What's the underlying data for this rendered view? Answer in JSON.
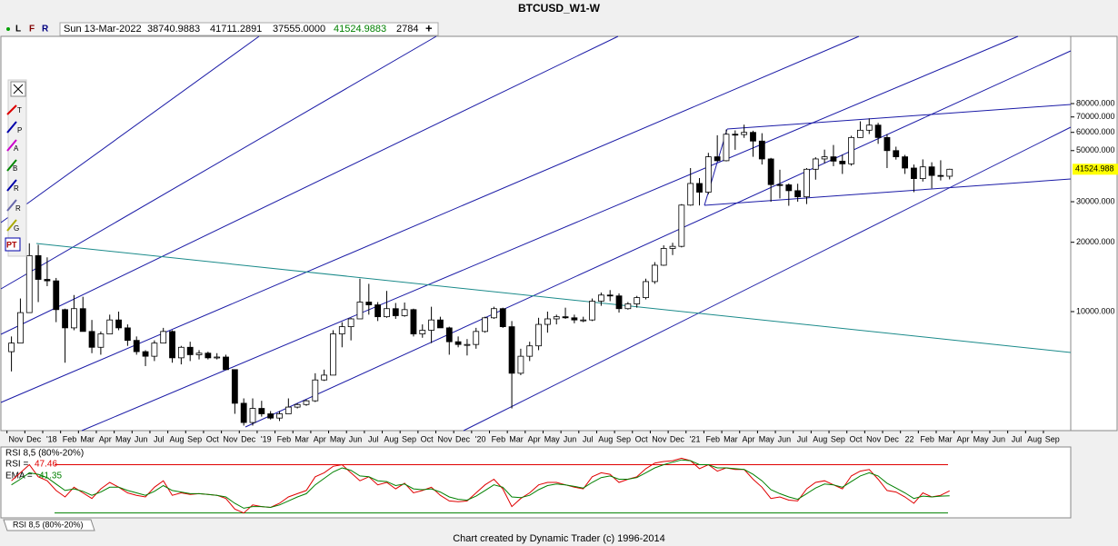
{
  "title": "BTCUSD_W1-W",
  "info_bar": {
    "flags": [
      "L",
      "F",
      "R"
    ],
    "date": "Sun 13-Mar-2022",
    "open": "38740.9883",
    "high": "41711.2891",
    "low": "37555.0000",
    "close": "41524.9883",
    "volume": "2784"
  },
  "toolbar": [
    "T",
    "P",
    "A",
    "B",
    "R",
    "R",
    "G",
    "PT"
  ],
  "chart_data": [
    {
      "type": "candlestick",
      "log_scale": true,
      "up_color": "#ffffff",
      "down_color": "#000000",
      "ylim": [
        3043,
        156700
      ],
      "yticks": [
        {
          "value": 10000,
          "label": "10000.000"
        },
        {
          "value": 20000,
          "label": "20000.000"
        },
        {
          "value": 30000,
          "label": "30000.000"
        },
        {
          "value": 50000,
          "label": "50000.000"
        },
        {
          "value": 60000,
          "label": "60000.000"
        },
        {
          "value": 70000,
          "label": "70000.000"
        },
        {
          "value": 80000,
          "label": "80000.000"
        }
      ],
      "last_price_label": "41524.988",
      "categories": [
        "Nov",
        "Dec",
        "'18",
        "Feb",
        "Mar",
        "Apr",
        "May",
        "Jun",
        "Jul",
        "Aug",
        "Sep",
        "Oct",
        "Nov",
        "Dec",
        "'19",
        "Feb",
        "Mar",
        "Apr",
        "May",
        "Jun",
        "Jul",
        "Aug",
        "Sep",
        "Oct",
        "Nov",
        "Dec",
        "'20",
        "Feb",
        "Mar",
        "Apr",
        "May",
        "Jun",
        "Jul",
        "Aug",
        "Sep",
        "Oct",
        "Nov",
        "Dec",
        "'21",
        "Feb",
        "Mar",
        "Apr",
        "May",
        "Jun",
        "Jul",
        "Aug",
        "Sep",
        "Oct",
        "Nov",
        "Dec",
        "22",
        "Feb",
        "Mar",
        "Apr",
        "May",
        "Jun",
        "Jul",
        "Aug",
        "Sep"
      ],
      "ohlc": [
        [
          6700,
          7800,
          5500,
          7300
        ],
        [
          7300,
          11400,
          7300,
          9900
        ],
        [
          9900,
          19800,
          9900,
          17500
        ],
        [
          17500,
          19500,
          11000,
          13800
        ],
        [
          13800,
          17200,
          12900,
          13600
        ],
        [
          13600,
          14000,
          9000,
          10200
        ],
        [
          10200,
          10300,
          6000,
          8500
        ],
        [
          8500,
          11800,
          8300,
          10300
        ],
        [
          10300,
          11600,
          8300,
          8200
        ],
        [
          8200,
          9200,
          6600,
          7000
        ],
        [
          7000,
          8200,
          6500,
          8000
        ],
        [
          8000,
          9700,
          8000,
          9200
        ],
        [
          9200,
          10000,
          8300,
          8500
        ],
        [
          8500,
          8800,
          7100,
          7500
        ],
        [
          7500,
          7800,
          6500,
          6700
        ],
        [
          6700,
          6800,
          5800,
          6400
        ],
        [
          6400,
          7500,
          6100,
          7300
        ],
        [
          7300,
          8500,
          7300,
          8200
        ],
        [
          8200,
          8300,
          6000,
          6300
        ],
        [
          6300,
          7100,
          5900,
          7000
        ],
        [
          7000,
          7400,
          6100,
          6500
        ],
        [
          6500,
          6800,
          6200,
          6600
        ],
        [
          6600,
          6700,
          6200,
          6300
        ],
        [
          6300,
          6600,
          6200,
          6350
        ],
        [
          6350,
          6500,
          5600,
          5600
        ],
        [
          5600,
          5600,
          3600,
          4000
        ],
        [
          4000,
          4200,
          3200,
          3300
        ],
        [
          3300,
          4200,
          3200,
          3800
        ],
        [
          3800,
          4100,
          3500,
          3600
        ],
        [
          3600,
          3700,
          3400,
          3450
        ],
        [
          3450,
          3700,
          3350,
          3600
        ],
        [
          3600,
          4200,
          3600,
          3850
        ],
        [
          3850,
          4000,
          3800,
          3950
        ],
        [
          3950,
          4150,
          3900,
          4100
        ],
        [
          4100,
          5400,
          4050,
          5050
        ],
        [
          5050,
          5600,
          5000,
          5300
        ],
        [
          5300,
          8300,
          5300,
          8000
        ],
        [
          8000,
          9000,
          7000,
          8600
        ],
        [
          8600,
          9400,
          7500,
          9300
        ],
        [
          9300,
          13900,
          9300,
          11000
        ],
        [
          11000,
          13200,
          9700,
          10700
        ],
        [
          10700,
          11000,
          9100,
          9500
        ],
        [
          9500,
          12300,
          9400,
          10300
        ],
        [
          10300,
          10900,
          9300,
          9600
        ],
        [
          9600,
          10950,
          9500,
          10200
        ],
        [
          10200,
          10300,
          7800,
          8000
        ],
        [
          8000,
          8800,
          7700,
          8300
        ],
        [
          8300,
          10500,
          7300,
          9200
        ],
        [
          9200,
          9500,
          8500,
          8500
        ],
        [
          8500,
          8600,
          6500,
          7400
        ],
        [
          7400,
          7800,
          7000,
          7200
        ],
        [
          7200,
          7600,
          6450,
          7200
        ],
        [
          7200,
          8500,
          6900,
          8200
        ],
        [
          8200,
          9500,
          8100,
          9400
        ],
        [
          9400,
          10500,
          9300,
          10300
        ],
        [
          10300,
          10400,
          8500,
          8600
        ],
        [
          8600,
          9100,
          3800,
          5400
        ],
        [
          5400,
          6900,
          5300,
          6400
        ],
        [
          6400,
          7400,
          6100,
          7100
        ],
        [
          7100,
          9400,
          6800,
          8800
        ],
        [
          8800,
          10000,
          8100,
          9300
        ],
        [
          9300,
          9700,
          8800,
          9500
        ],
        [
          9500,
          10400,
          9300,
          9400
        ],
        [
          9400,
          9700,
          8900,
          9200
        ],
        [
          9200,
          9500,
          9000,
          9200
        ],
        [
          9200,
          11400,
          9100,
          11100
        ],
        [
          11100,
          12100,
          10600,
          11800
        ],
        [
          11800,
          12400,
          11100,
          11700
        ],
        [
          11700,
          12000,
          9900,
          10300
        ],
        [
          10300,
          11000,
          10200,
          10800
        ],
        [
          10800,
          11700,
          10400,
          11500
        ],
        [
          11500,
          13900,
          11300,
          13500
        ],
        [
          13500,
          16400,
          13200,
          15900
        ],
        [
          15900,
          19400,
          15800,
          18800
        ],
        [
          18800,
          19900,
          17600,
          19200
        ],
        [
          19200,
          29300,
          19000,
          29000
        ],
        [
          29000,
          42000,
          28800,
          36000
        ],
        [
          36000,
          38000,
          28900,
          33000
        ],
        [
          33000,
          48900,
          32300,
          47000
        ],
        [
          47000,
          58300,
          44900,
          45200
        ],
        [
          45200,
          61700,
          44900,
          58900
        ],
        [
          58900,
          61200,
          50400,
          58700
        ],
        [
          58700,
          64800,
          56800,
          60000
        ],
        [
          60000,
          61000,
          47000,
          55000
        ],
        [
          55000,
          59500,
          43500,
          46000
        ],
        [
          46000,
          46500,
          30000,
          35600
        ],
        [
          35600,
          41300,
          31000,
          35500
        ],
        [
          35500,
          36000,
          28800,
          33500
        ],
        [
          33500,
          35900,
          30000,
          31500
        ],
        [
          31500,
          42000,
          29300,
          41500
        ],
        [
          41500,
          46800,
          37400,
          46000
        ],
        [
          46000,
          50500,
          44000,
          47000
        ],
        [
          47000,
          52900,
          42800,
          45000
        ],
        [
          45000,
          48000,
          39600,
          43800
        ],
        [
          43800,
          58000,
          43000,
          57000
        ],
        [
          57000,
          67000,
          56800,
          61300
        ],
        [
          61300,
          69000,
          59000,
          64500
        ],
        [
          64500,
          66000,
          53500,
          57000
        ],
        [
          57000,
          59000,
          42000,
          50000
        ],
        [
          50000,
          52000,
          45700,
          47000
        ],
        [
          47000,
          47900,
          39600,
          42000
        ],
        [
          42000,
          43500,
          33000,
          37800
        ],
        [
          37800,
          45800,
          36700,
          42500
        ],
        [
          42500,
          44500,
          34300,
          39000
        ],
        [
          39000,
          45400,
          37100,
          38700
        ],
        [
          38700,
          41700,
          37500,
          41500
        ]
      ]
    },
    {
      "type": "line",
      "title": "RSI 8,5 (80%-20%)",
      "ylim": [
        14,
        102
      ],
      "levels": [
        80,
        20
      ],
      "level_colors": [
        "#e00000",
        "#008000"
      ],
      "series": [
        {
          "name": "RSI =",
          "color": "#e00000",
          "values": [
            60,
            70,
            80,
            65,
            60,
            48,
            40,
            52,
            45,
            38,
            50,
            58,
            52,
            45,
            42,
            40,
            52,
            60,
            42,
            45,
            43,
            44,
            43,
            42,
            38,
            25,
            20,
            30,
            28,
            27,
            32,
            40,
            44,
            48,
            65,
            70,
            78,
            80,
            70,
            60,
            65,
            55,
            58,
            50,
            57,
            45,
            48,
            52,
            42,
            35,
            34,
            35,
            45,
            55,
            62,
            50,
            28,
            38,
            45,
            55,
            58,
            58,
            55,
            52,
            50,
            65,
            70,
            68,
            58,
            62,
            65,
            75,
            82,
            84,
            85,
            88,
            85,
            75,
            80,
            72,
            76,
            74,
            74,
            62,
            52,
            38,
            40,
            36,
            35,
            50,
            58,
            60,
            55,
            50,
            66,
            72,
            74,
            62,
            48,
            46,
            40,
            32,
            45,
            40,
            42,
            47.46
          ]
        },
        {
          "name": "EMA =",
          "color": "#008000",
          "values": [
            55,
            62,
            70,
            68,
            64,
            56,
            48,
            50,
            47,
            42,
            46,
            52,
            52,
            48,
            45,
            42,
            47,
            54,
            48,
            46,
            44,
            44,
            43,
            42,
            40,
            32,
            26,
            28,
            28,
            27,
            30,
            35,
            40,
            44,
            55,
            63,
            71,
            76,
            73,
            66,
            65,
            60,
            59,
            54,
            56,
            50,
            49,
            50,
            46,
            40,
            37,
            36,
            41,
            48,
            55,
            52,
            40,
            39,
            42,
            49,
            54,
            56,
            55,
            53,
            51,
            58,
            64,
            66,
            62,
            62,
            64,
            70,
            76,
            80,
            83,
            86,
            85,
            80,
            80,
            76,
            76,
            75,
            74,
            68,
            60,
            49,
            44,
            40,
            37,
            44,
            51,
            56,
            55,
            52,
            59,
            66,
            70,
            66,
            57,
            51,
            45,
            38,
            41,
            40,
            41,
            41.35
          ]
        }
      ]
    }
  ],
  "tab": "RSI 8,5 (80%-20%)",
  "footer": "Chart created by Dynamic Trader  (c) 1996-2014"
}
